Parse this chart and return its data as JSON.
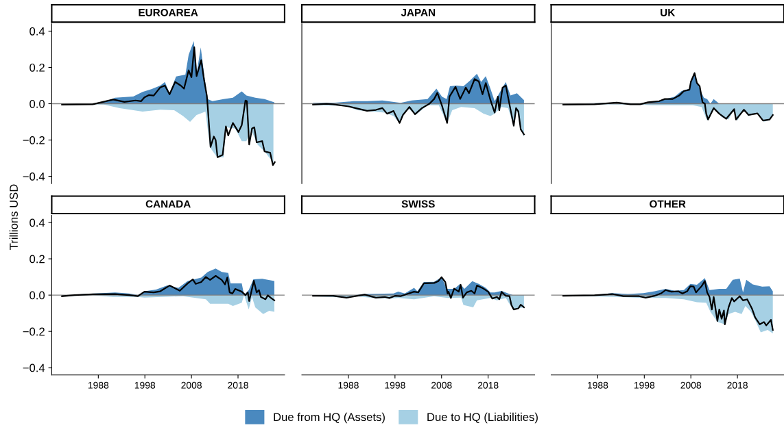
{
  "chart_data": [
    {
      "type": "area",
      "title": "EUROAREA",
      "ylabel": "Trillions USD",
      "legend": "bottom",
      "tick_labels": "y",
      "xlim": [
        1978,
        2028
      ],
      "ylim": [
        -0.44,
        0.44
      ],
      "xticks": [
        1988,
        1998,
        2008,
        2018
      ],
      "yticks": [
        {
          "value": -0.4,
          "label": "−0.4"
        },
        {
          "value": -0.2,
          "label": "−0.2"
        },
        {
          "value": 0,
          "label": "0.0"
        },
        {
          "value": 0.2,
          "label": "0.2"
        },
        {
          "value": 0.4,
          "label": "0.4"
        }
      ],
      "ref_lines": [
        {
          "axis": "y",
          "value": 0,
          "color": "#7f7f7f"
        }
      ],
      "series": [
        {
          "name": "Due from HQ (Assets)",
          "color": "#4a89bf",
          "x": [
            1980.2,
            1986.8,
            1990.2,
            1991.6,
            1995.5,
            1997.5,
            1999.4,
            2001.3,
            2002.3,
            2003.3,
            2004.7,
            2006.7,
            2007.4,
            2008.5,
            2009.1,
            2010.0,
            2010.8,
            2011.5,
            2012.5,
            2014.9,
            2016.9,
            2018.8,
            2019.8,
            2021.7,
            2023.7,
            2025.8
          ],
          "values": [
            0,
            0,
            0.018,
            0.033,
            0.04,
            0.065,
            0.08,
            0.1,
            0.12,
            0.058,
            0.15,
            0.16,
            0.27,
            0.345,
            0.165,
            0.31,
            0.146,
            0.026,
            0.014,
            0.026,
            0.033,
            0.068,
            0.045,
            0.033,
            0.026,
            0.008
          ]
        },
        {
          "name": "Due to HQ (Liabilities)",
          "color": "#a6d0e4",
          "x": [
            1980.2,
            1989.2,
            1992.6,
            1997.5,
            2001.3,
            2004.3,
            2006.2,
            2007.7,
            2009.1,
            2011.0,
            2012.0,
            2013.5,
            2014.9,
            2015.4,
            2017.4,
            2018.8,
            2019.8,
            2020.8,
            2022.2,
            2023.7,
            2025.6
          ],
          "values": [
            0,
            -0.005,
            -0.024,
            -0.043,
            -0.033,
            -0.036,
            -0.068,
            -0.1,
            -0.062,
            -0.043,
            -0.24,
            -0.295,
            -0.295,
            -0.13,
            -0.137,
            -0.206,
            -0.206,
            -0.143,
            -0.225,
            -0.263,
            -0.326
          ]
        },
        {
          "type": "line",
          "color": "#000000",
          "x": [
            1980.2,
            1986.8,
            1991.2,
            1993.6,
            1996.0,
            1997.2,
            1997.9,
            1998.9,
            1999.9,
            2001.3,
            2002.3,
            2003.3,
            2004.5,
            2005.7,
            2006.4,
            2007.4,
            2008.0,
            2008.6,
            2009.1,
            2010.1,
            2010.7,
            2011.3,
            2011.5,
            2012.1,
            2012.8,
            2013.2,
            2013.6,
            2014.7,
            2015.4,
            2015.9,
            2016.9,
            2018.1,
            2018.8,
            2019.6,
            2019.9,
            2020.4,
            2021.0,
            2021.5,
            2022.0,
            2023.2,
            2023.7,
            2024.9,
            2025.5,
            2025.9
          ],
          "values": [
            -0.005,
            -0.003,
            0.023,
            0.01,
            0.018,
            0.014,
            0.035,
            0.048,
            0.045,
            0.09,
            0.1,
            0.052,
            0.12,
            0.1,
            0.083,
            0.184,
            0.146,
            0.312,
            0.152,
            0.24,
            0.133,
            0.045,
            -0.018,
            -0.238,
            -0.181,
            -0.2,
            -0.295,
            -0.282,
            -0.125,
            -0.175,
            -0.106,
            -0.156,
            -0.118,
            0.018,
            0.014,
            -0.225,
            -0.137,
            -0.13,
            -0.213,
            -0.206,
            -0.263,
            -0.27,
            -0.338,
            -0.322
          ]
        }
      ]
    },
    {
      "type": "area",
      "title": "JAPAN",
      "tick_labels": false,
      "xlim": [
        1978,
        2028
      ],
      "ylim": [
        -0.44,
        0.44
      ],
      "xticks": [
        1988,
        1998,
        2008,
        2018
      ],
      "yticks": [
        {
          "value": -0.4,
          "label": "−0.4"
        },
        {
          "value": -0.2,
          "label": "−0.2"
        },
        {
          "value": 0,
          "label": "0.0"
        },
        {
          "value": 0.2,
          "label": "0.2"
        },
        {
          "value": 0.4,
          "label": "0.4"
        }
      ],
      "ref_lines": [
        {
          "axis": "y",
          "value": 0,
          "color": "#7f7f7f"
        }
      ],
      "series": [
        {
          "name": "Due from HQ (Assets)",
          "color": "#4a89bf",
          "x": [
            1980.4,
            1984.7,
            1989.1,
            1992.0,
            1995.3,
            1999.2,
            2001.6,
            2005.0,
            2006.9,
            2008.1,
            2009.1,
            2009.8,
            2011.2,
            2012.7,
            2014.1,
            2015.6,
            2016.5,
            2017.5,
            2018.5,
            2019.4,
            2020.4,
            2021.8,
            2022.8,
            2024.2,
            2025.7
          ],
          "values": [
            0.005,
            0.005,
            0.014,
            0.014,
            0.018,
            0.005,
            0.018,
            0.026,
            0.083,
            0.039,
            0.026,
            0.096,
            0.1,
            0.096,
            0.127,
            0.165,
            0.12,
            0.152,
            0.083,
            0.014,
            0.058,
            0.12,
            0.045,
            0.058,
            0.02
          ]
        },
        {
          "name": "Due to HQ (Liabilities)",
          "color": "#a6d0e4",
          "x": [
            1980.4,
            1987.1,
            1990.0,
            1992.0,
            1995.8,
            1997.7,
            1999.0,
            2000.6,
            2002.6,
            2005.0,
            2007.4,
            2009.2,
            2010.3,
            2012.2,
            2015.1,
            2017.0,
            2018.5,
            2019.4,
            2020.9,
            2022.3,
            2023.5,
            2024.2,
            2025.0,
            2025.7
          ],
          "values": [
            -0.008,
            -0.011,
            -0.036,
            -0.04,
            -0.049,
            -0.068,
            -0.108,
            -0.024,
            -0.058,
            -0.008,
            -0.008,
            -0.106,
            -0.036,
            -0.018,
            -0.024,
            -0.055,
            -0.068,
            -0.055,
            -0.018,
            -0.024,
            -0.126,
            -0.036,
            -0.143,
            -0.181
          ]
        },
        {
          "type": "line",
          "color": "#000000",
          "x": [
            1980.4,
            1983.3,
            1984.7,
            1988.1,
            1989.5,
            1992.0,
            1993.9,
            1995.3,
            1996.3,
            1997.7,
            1998.2,
            1999.0,
            1999.7,
            2001.1,
            2002.3,
            2003.8,
            2005.4,
            2006.4,
            2007.1,
            2008.1,
            2009.2,
            2009.7,
            2011.0,
            2012.0,
            2013.2,
            2013.9,
            2015.1,
            2016.0,
            2016.8,
            2017.5,
            2018.5,
            2019.4,
            2020.1,
            2020.4,
            2021.1,
            2021.8,
            2022.6,
            2023.5,
            2024.0,
            2024.5,
            2025.0,
            2025.7
          ],
          "values": [
            -0.005,
            0,
            -0.003,
            -0.015,
            -0.024,
            -0.039,
            -0.034,
            -0.024,
            -0.055,
            -0.04,
            -0.068,
            -0.106,
            -0.062,
            -0.018,
            -0.058,
            -0.024,
            0,
            0.026,
            0.06,
            -0.011,
            -0.106,
            0.039,
            0.093,
            0.026,
            0.089,
            0.058,
            0.136,
            0.123,
            0.052,
            0.114,
            0.02,
            -0.049,
            0.039,
            -0.036,
            0.089,
            0.1,
            -0.005,
            -0.121,
            -0.024,
            -0.043,
            -0.141,
            -0.169
          ]
        }
      ]
    },
    {
      "type": "area",
      "title": "UK",
      "tick_labels": false,
      "xlim": [
        1978,
        2028
      ],
      "ylim": [
        -0.44,
        0.44
      ],
      "xticks": [
        1988,
        1998,
        2008,
        2018
      ],
      "yticks": [
        {
          "value": -0.4,
          "label": "−0.4"
        },
        {
          "value": -0.2,
          "label": "−0.2"
        },
        {
          "value": 0,
          "label": "0.0"
        },
        {
          "value": 0.2,
          "label": "0.2"
        },
        {
          "value": 0.4,
          "label": "0.4"
        }
      ],
      "ref_lines": [
        {
          "axis": "y",
          "value": 0,
          "color": "#7f7f7f"
        }
      ],
      "series": [
        {
          "name": "Due from HQ (Assets)",
          "color": "#4a89bf",
          "x": [
            1980.6,
            1989.7,
            1992.1,
            1994.5,
            1996.9,
            1999.3,
            2001.7,
            2003.1,
            2004.5,
            2006.0,
            2007.7,
            2008.6,
            2009.3,
            2010.1,
            2010.8,
            2011.5,
            2012.2,
            2012.9,
            2014.1,
            2025.6
          ],
          "values": [
            0,
            0.004,
            0.008,
            0.003,
            0,
            0.01,
            0.018,
            0.029,
            0.039,
            0.07,
            0.083,
            0.169,
            0.121,
            0.07,
            0.033,
            0.026,
            0,
            0.026,
            0,
            0
          ]
        },
        {
          "name": "Due to HQ (Liabilities)",
          "color": "#a6d0e4",
          "x": [
            1980.6,
            1996.9,
            1999.7,
            2008.4,
            2010.3,
            2011.5,
            2012.2,
            2013.2,
            2014.6,
            2016.1,
            2017.3,
            2018.0,
            2019.4,
            2020.4,
            2022.3,
            2023.7,
            2024.9,
            2025.6
          ],
          "values": [
            -0.003,
            -0.005,
            -0.008,
            -0.008,
            -0.018,
            -0.093,
            -0.062,
            -0.024,
            -0.074,
            -0.087,
            -0.03,
            -0.093,
            -0.028,
            -0.068,
            -0.049,
            -0.099,
            -0.091,
            -0.062
          ]
        },
        {
          "type": "line",
          "color": "#000000",
          "x": [
            1980.6,
            1987.3,
            1992.1,
            1995.0,
            1997.1,
            1998.8,
            2001.2,
            2002.4,
            2004.1,
            2005.5,
            2006.5,
            2007.7,
            2008.0,
            2008.8,
            2009.3,
            2009.9,
            2010.5,
            2011.0,
            2011.3,
            2011.7,
            2012.9,
            2014.1,
            2015.6,
            2017.3,
            2017.7,
            2019.4,
            2020.4,
            2022.3,
            2023.5,
            2024.9,
            2025.6
          ],
          "values": [
            -0.005,
            -0.003,
            0.006,
            -0.003,
            -0.003,
            0.008,
            0.014,
            0.026,
            0.026,
            0.045,
            0.07,
            0.077,
            0.121,
            0.169,
            0.114,
            0.096,
            0.008,
            0,
            -0.055,
            -0.087,
            -0.024,
            -0.055,
            -0.083,
            -0.03,
            -0.087,
            -0.033,
            -0.062,
            -0.053,
            -0.093,
            -0.087,
            -0.062
          ]
        }
      ]
    },
    {
      "type": "area",
      "title": "CANADA",
      "xlim": [
        1978,
        2028
      ],
      "ylim": [
        -0.44,
        0.44
      ],
      "xticks": [
        1988,
        1998,
        2008,
        2018
      ],
      "yticks": [
        {
          "value": -0.4,
          "label": "−0.4"
        },
        {
          "value": -0.2,
          "label": "−0.2"
        },
        {
          "value": 0,
          "label": "0.0"
        },
        {
          "value": 0.2,
          "label": "0.2"
        },
        {
          "value": 0.4,
          "label": "0.4"
        }
      ],
      "ref_lines": [
        {
          "axis": "y",
          "value": 0,
          "color": "#7f7f7f"
        }
      ],
      "series": [
        {
          "name": "Due from HQ (Assets)",
          "color": "#4a89bf",
          "x": [
            1980.2,
            1982.9,
            1984.4,
            1991.6,
            1994.6,
            1996.5,
            1997.9,
            2000.4,
            2002.8,
            2005.2,
            2007.2,
            2010.1,
            2011.5,
            2013.2,
            2014.5,
            2015.9,
            2016.4,
            2018.8,
            2019.3,
            2020.3,
            2021.3,
            2023.2,
            2025.8
          ],
          "values": [
            0,
            0,
            0.005,
            0.015,
            0.009,
            0,
            0.021,
            0.031,
            0.053,
            0.04,
            0.078,
            0.097,
            0.128,
            0.147,
            0.128,
            0.122,
            0.065,
            0.065,
            0,
            0.028,
            0.087,
            0.09,
            0.078
          ]
        },
        {
          "name": "Due to HQ (Liabilities)",
          "color": "#a6d0e4",
          "x": [
            1980.2,
            1986.8,
            1991.2,
            1996.5,
            1997.9,
            2006.2,
            2011.1,
            2012.0,
            2015.9,
            2016.9,
            2018.8,
            2019.3,
            2020.3,
            2021.0,
            2021.7,
            2023.4,
            2024.7,
            2025.8
          ],
          "values": [
            -0.006,
            -0.001,
            -0.01,
            -0.01,
            -0.014,
            -0.006,
            -0.023,
            -0.048,
            -0.048,
            -0.06,
            -0.042,
            0,
            -0.079,
            -0.01,
            -0.067,
            -0.104,
            -0.086,
            -0.092
          ]
        },
        {
          "type": "line",
          "color": "#000000",
          "x": [
            1980.2,
            1982.9,
            1986.8,
            1991.6,
            1994.6,
            1996.5,
            1997.9,
            1999.9,
            2001.3,
            2003.3,
            2005.5,
            2007.2,
            2008.3,
            2008.9,
            2010.1,
            2011.1,
            2012.0,
            2013.2,
            2014.5,
            2015.2,
            2015.7,
            2016.2,
            2016.8,
            2017.4,
            2018.8,
            2019.6,
            2020.1,
            2020.4,
            2021.4,
            2022.0,
            2022.5,
            2022.9,
            2023.9,
            2024.4,
            2025.1,
            2025.8
          ],
          "values": [
            -0.006,
            0,
            0.005,
            0.006,
            0,
            -0.006,
            0.019,
            0.015,
            0.021,
            0.053,
            0.024,
            0.065,
            0.087,
            0.062,
            0.072,
            0.1,
            0.084,
            0.106,
            0.084,
            0.059,
            0.097,
            0.015,
            0.009,
            0.034,
            0.019,
            0,
            0.015,
            -0.033,
            0.079,
            0.015,
            0.028,
            -0.01,
            -0.023,
            -0.001,
            -0.016,
            -0.029
          ]
        }
      ]
    },
    {
      "type": "area",
      "title": "SWISS",
      "tick_labels": "x",
      "xlim": [
        1978,
        2028
      ],
      "ylim": [
        -0.44,
        0.44
      ],
      "xticks": [
        1988,
        1998,
        2008,
        2018
      ],
      "yticks": [
        {
          "value": -0.4,
          "label": "−0.4"
        },
        {
          "value": -0.2,
          "label": "−0.2"
        },
        {
          "value": 0,
          "label": "0.0"
        },
        {
          "value": 0.2,
          "label": "0.2"
        },
        {
          "value": 0.4,
          "label": "0.4"
        }
      ],
      "ref_lines": [
        {
          "axis": "y",
          "value": 0,
          "color": "#7f7f7f"
        }
      ],
      "series": [
        {
          "name": "Due from HQ (Assets)",
          "color": "#4a89bf",
          "x": [
            1980.4,
            1989.5,
            1991.5,
            1997.7,
            1998.7,
            2000.1,
            2002.1,
            2002.8,
            2004.2,
            2006.4,
            2008.0,
            2009.1,
            2010.7,
            2012.0,
            2012.9,
            2014.6,
            2016.0,
            2017.5,
            2018.5,
            2019.4,
            2020.9,
            2022.6,
            2023.3
          ],
          "values": [
            0,
            0,
            0.006,
            0.009,
            0.019,
            0.009,
            0.04,
            0.021,
            0.072,
            0.073,
            0.099,
            0.034,
            0.034,
            0.062,
            0.034,
            0.077,
            0.062,
            0.04,
            0.015,
            0.015,
            0.023,
            0.006,
            0
          ]
        },
        {
          "name": "Due to HQ (Liabilities)",
          "color": "#a6d0e4",
          "x": [
            1980.4,
            1987.1,
            1989.5,
            1993.4,
            1996.8,
            1998.7,
            2002.1,
            2006.4,
            2009.3,
            2012.2,
            2012.7,
            2014.8,
            2015.6,
            2018.5,
            2019.9,
            2021.8,
            2023.3,
            2024.5,
            2025.7
          ],
          "values": [
            -0.006,
            -0.014,
            -0.006,
            -0.016,
            -0.019,
            -0.016,
            -0.023,
            -0.006,
            -0.016,
            -0.014,
            -0.054,
            -0.067,
            -0.029,
            -0.016,
            -0.029,
            -0.016,
            -0.079,
            -0.073,
            -0.067
          ]
        },
        {
          "type": "line",
          "color": "#000000",
          "x": [
            1980.4,
            1984.7,
            1987.6,
            1989.5,
            1991.5,
            1993.9,
            1995.8,
            1996.8,
            1998.0,
            1999.2,
            2000.6,
            2002.1,
            2003.0,
            2004.2,
            2006.4,
            2007.3,
            2008.0,
            2008.8,
            2009.3,
            2009.5,
            2010.0,
            2010.7,
            2011.7,
            2012.1,
            2012.6,
            2013.4,
            2014.4,
            2015.1,
            2015.6,
            2017.0,
            2018.0,
            2018.9,
            2019.9,
            2020.4,
            2020.9,
            2021.8,
            2022.6,
            2023.0,
            2023.5,
            2024.5,
            2025.0,
            2025.7
          ],
          "values": [
            -0.004,
            -0.004,
            -0.014,
            -0.006,
            0.003,
            -0.014,
            -0.01,
            -0.016,
            -0.004,
            -0.006,
            0.006,
            0.019,
            0.015,
            0.065,
            0.067,
            0.077,
            0.099,
            0.072,
            0.009,
            0.019,
            -0.016,
            0.036,
            0.019,
            0.057,
            -0.014,
            0.015,
            0.024,
            0.009,
            0.053,
            0.036,
            0.019,
            -0.019,
            -0.01,
            -0.023,
            0.018,
            -0.004,
            -0.006,
            -0.054,
            -0.079,
            -0.073,
            -0.053,
            -0.067
          ]
        }
      ]
    },
    {
      "type": "area",
      "title": "OTHER",
      "tick_labels": "x",
      "xlim": [
        1978,
        2028
      ],
      "ylim": [
        -0.44,
        0.44
      ],
      "xticks": [
        1988,
        1998,
        2008,
        2018
      ],
      "yticks": [
        {
          "value": -0.4,
          "label": "−0.4"
        },
        {
          "value": -0.2,
          "label": "−0.2"
        },
        {
          "value": 0,
          "label": "0.0"
        },
        {
          "value": 0.2,
          "label": "0.2"
        },
        {
          "value": 0.4,
          "label": "0.4"
        }
      ],
      "ref_lines": [
        {
          "axis": "y",
          "value": 0,
          "color": "#7f7f7f"
        }
      ],
      "series": [
        {
          "name": "Due from HQ (Assets)",
          "color": "#4a89bf",
          "x": [
            1980.6,
            1987.3,
            1991.1,
            1994.5,
            1997.8,
            2000.2,
            2002.6,
            2004.5,
            2006.5,
            2007.9,
            2009.3,
            2011.0,
            2012.0,
            2014.1,
            2015.6,
            2017.0,
            2018.5,
            2019.2,
            2019.9,
            2021.3,
            2023.3,
            2024.9,
            2025.6
          ],
          "values": [
            0,
            0,
            0.011,
            0.006,
            0.011,
            0.021,
            0.034,
            0.024,
            0.028,
            0.062,
            0.057,
            0.094,
            0.028,
            0.034,
            0.034,
            0.084,
            0.091,
            0.015,
            0.084,
            0.059,
            0.047,
            0.049,
            0.021
          ]
        },
        {
          "name": "Due to HQ (Liabilities)",
          "color": "#a6d0e4",
          "x": [
            1980.6,
            1992.1,
            1997.8,
            2002.6,
            2006.5,
            2009.3,
            2011.3,
            2012.2,
            2013.7,
            2015.3,
            2016.1,
            2017.5,
            2018.9,
            2019.7,
            2020.9,
            2021.8,
            2023.0,
            2024.5,
            2025.6
          ],
          "values": [
            -0.003,
            -0.01,
            -0.016,
            -0.016,
            -0.023,
            -0.039,
            -0.042,
            -0.092,
            -0.148,
            -0.161,
            -0.104,
            -0.092,
            -0.104,
            -0.06,
            -0.092,
            -0.136,
            -0.205,
            -0.192,
            -0.211
          ]
        },
        {
          "type": "line",
          "color": "#000000",
          "x": [
            1980.6,
            1987.3,
            1991.1,
            1993.5,
            1996.9,
            1998.3,
            2000.2,
            2001.7,
            2002.6,
            2003.8,
            2005.3,
            2006.2,
            2007.2,
            2007.9,
            2008.6,
            2009.1,
            2010.3,
            2011.0,
            2011.5,
            2012.0,
            2012.5,
            2012.9,
            2013.7,
            2014.1,
            2014.6,
            2015.1,
            2015.3,
            2016.1,
            2016.8,
            2017.3,
            2018.5,
            2019.2,
            2020.1,
            2021.1,
            2021.8,
            2022.8,
            2023.7,
            2024.2,
            2025.2,
            2025.6
          ],
          "values": [
            -0.004,
            -0.001,
            0.006,
            -0.006,
            -0.006,
            -0.014,
            -0.004,
            0.011,
            0.028,
            0.019,
            0.021,
            0.009,
            0.021,
            0.049,
            0.047,
            0.015,
            0.049,
            0.078,
            0.015,
            -0.01,
            -0.079,
            -0.01,
            -0.142,
            -0.079,
            -0.13,
            -0.085,
            -0.161,
            -0.067,
            -0.016,
            -0.035,
            -0.006,
            -0.029,
            -0.023,
            -0.073,
            -0.123,
            -0.161,
            -0.148,
            -0.167,
            -0.136,
            -0.192
          ]
        }
      ]
    }
  ]
}
